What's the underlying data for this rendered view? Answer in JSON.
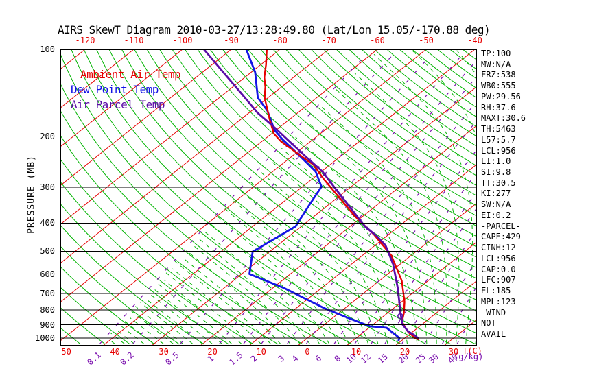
{
  "title": "AIRS SkewT Diagram 2010-03-27/13:28:49.80 (Lat/Lon 15.05/-170.88 deg)",
  "legend": {
    "items": [
      {
        "label": "Ambient Air Temp",
        "color": "#e60000"
      },
      {
        "label": "Dew Point Temp",
        "color": "#1414e6"
      },
      {
        "label": "Air Parcel Temp",
        "color": "#5a0ca6"
      }
    ]
  },
  "axes": {
    "pressure_axis_label": "PRESSURE (MB)",
    "temp_unit_label": "T(C)",
    "mixing_unit_label": "(g/kg)",
    "pressure_ticks": [
      100,
      200,
      300,
      400,
      500,
      600,
      700,
      800,
      900,
      1000
    ],
    "top_temp_ticks": [
      -120,
      -110,
      -100,
      -90,
      -80,
      -70,
      -60,
      -50,
      -40
    ],
    "bottom_temp_ticks": [
      -50,
      -40,
      -30,
      -20,
      -10,
      0,
      10,
      20,
      30
    ],
    "mixing_ratio_ticks": [
      {
        "value": "0.1",
        "x": 137
      },
      {
        "value": "0.2",
        "x": 185
      },
      {
        "value": "0.5",
        "x": 251
      },
      {
        "value": "1",
        "x": 307
      },
      {
        "value": "1.5",
        "x": 344
      },
      {
        "value": "2",
        "x": 370
      },
      {
        "value": "3",
        "x": 410
      },
      {
        "value": "4",
        "x": 430
      },
      {
        "value": "6",
        "x": 464
      },
      {
        "value": "8",
        "x": 492
      },
      {
        "value": "10",
        "x": 512
      },
      {
        "value": "12",
        "x": 533
      },
      {
        "value": "15",
        "x": 558
      },
      {
        "value": "20",
        "x": 588
      },
      {
        "value": "25",
        "x": 613
      },
      {
        "value": "30",
        "x": 632
      },
      {
        "value": "40",
        "x": 660
      }
    ]
  },
  "side_panel": {
    "items": [
      "TP:100",
      "MW:N/A",
      "FRZ:538",
      "WB0:555",
      "PW:29.56",
      "RH:37.6",
      "MAXT:30.6",
      "TH:5463",
      "L57:5.7",
      "LCL:956",
      "LI:1.0",
      "SI:9.8",
      "TT:30.5",
      "KI:277",
      "SW:N/A",
      "EI:0.2",
      "-PARCEL-",
      "CAPE:429",
      "CINH:12",
      "LCL:956",
      "CAP:0.0",
      "LFC:907",
      "EL:185",
      "MPL:123",
      "-WIND-",
      "NOT",
      "AVAIL"
    ]
  },
  "colors": {
    "isotherm_red": "#e60000",
    "adiabat_green": "#00b400",
    "mixing_purple": "#7a0fae",
    "parcel_purple": "#5a0ca6",
    "dewpoint_blue": "#1414e6",
    "ambient_red": "#e60000",
    "axis_black": "#000000"
  },
  "chart_data": {
    "type": "line",
    "subtype": "skew-t-log-p",
    "title": "AIRS SkewT Diagram 2010-03-27/13:28:49.80 (Lat/Lon 15.05/-170.88 deg)",
    "xlabel": "T(C)",
    "ylabel": "PRESSURE (MB)",
    "y_axis": {
      "scale": "log",
      "range_mb": [
        100,
        1050
      ],
      "ticks": [
        100,
        200,
        300,
        400,
        500,
        600,
        700,
        800,
        900,
        1000
      ]
    },
    "x_axis": {
      "surface_temp_range_c": [
        -51,
        35
      ],
      "skew": "isotherms slope up-right, 10 C spacing"
    },
    "grid": {
      "isotherms_c": {
        "start": -140,
        "end": 40,
        "step": 10
      },
      "dry_adiabats_theta_k": {
        "start": 220,
        "end": 455,
        "step": 5
      },
      "moist_adiabats_surface_c": {
        "start": -52,
        "end": 38,
        "step": 2
      },
      "mixing_ratio_g_kg": [
        0.1,
        0.2,
        0.5,
        1,
        1.5,
        2,
        3,
        4,
        6,
        8,
        10,
        12,
        15,
        20,
        25,
        30,
        40
      ]
    },
    "legend_position": "top-left inside plot",
    "series": [
      {
        "name": "Ambient Air Temp",
        "color": "#e60000",
        "points_p_t": [
          [
            100,
            -82.7
          ],
          [
            113,
            -78.9
          ],
          [
            125,
            -76.0
          ],
          [
            135,
            -73.3
          ],
          [
            147,
            -70.7
          ],
          [
            176,
            -63.8
          ],
          [
            196,
            -59.5
          ],
          [
            209,
            -55.9
          ],
          [
            235,
            -47.9
          ],
          [
            251,
            -43.4
          ],
          [
            283,
            -37.3
          ],
          [
            324,
            -30.0
          ],
          [
            378,
            -21.7
          ],
          [
            438,
            -13.0
          ],
          [
            518,
            -4.0
          ],
          [
            633,
            4.6
          ],
          [
            749,
            10.6
          ],
          [
            820,
            13.4
          ],
          [
            878,
            15.2
          ],
          [
            949,
            18.9
          ],
          [
            1000,
            22.1
          ],
          [
            1012,
            23.3
          ]
        ]
      },
      {
        "name": "Dew Point Temp",
        "color": "#1414e6",
        "points_p_t": [
          [
            100,
            -86.9
          ],
          [
            120,
            -79.2
          ],
          [
            147,
            -72.1
          ],
          [
            163,
            -66.8
          ],
          [
            190,
            -60.4
          ],
          [
            205,
            -56.3
          ],
          [
            235,
            -48.2
          ],
          [
            265,
            -41.2
          ],
          [
            299,
            -36.1
          ],
          [
            348,
            -33.8
          ],
          [
            410,
            -31.2
          ],
          [
            502,
            -33.5
          ],
          [
            600,
            -28.4
          ],
          [
            670,
            -17.8
          ],
          [
            789,
            -4.1
          ],
          [
            854,
            3.4
          ],
          [
            910,
            9.8
          ],
          [
            921,
            13.6
          ],
          [
            1000,
            18.9
          ],
          [
            1023,
            19.4
          ]
        ]
      },
      {
        "name": "Air Parcel Temp",
        "color": "#5a0ca6",
        "points_p_t": [
          [
            100,
            -95.6
          ],
          [
            119,
            -86.2
          ],
          [
            141,
            -77.0
          ],
          [
            166,
            -68.2
          ],
          [
            187,
            -60.8
          ],
          [
            201,
            -56.5
          ],
          [
            234,
            -47.4
          ],
          [
            265,
            -39.8
          ],
          [
            301,
            -33.2
          ],
          [
            352,
            -25.0
          ],
          [
            410,
            -17.0
          ],
          [
            445,
            -11.8
          ],
          [
            478,
            -7.8
          ],
          [
            554,
            -1.5
          ],
          [
            670,
            5.6
          ],
          [
            820,
            12.7
          ],
          [
            897,
            16.0
          ],
          [
            949,
            19.0
          ],
          [
            977,
            21.2
          ],
          [
            1006,
            23.1
          ]
        ]
      }
    ],
    "markers": [
      {
        "name": "lcl-knot",
        "p": 839,
        "t": 13.4
      }
    ],
    "cape_hatch": {
      "between": [
        "Air Parcel Temp",
        "Ambient Air Temp"
      ],
      "pressure_range_mb": [
        210,
        420
      ]
    }
  }
}
